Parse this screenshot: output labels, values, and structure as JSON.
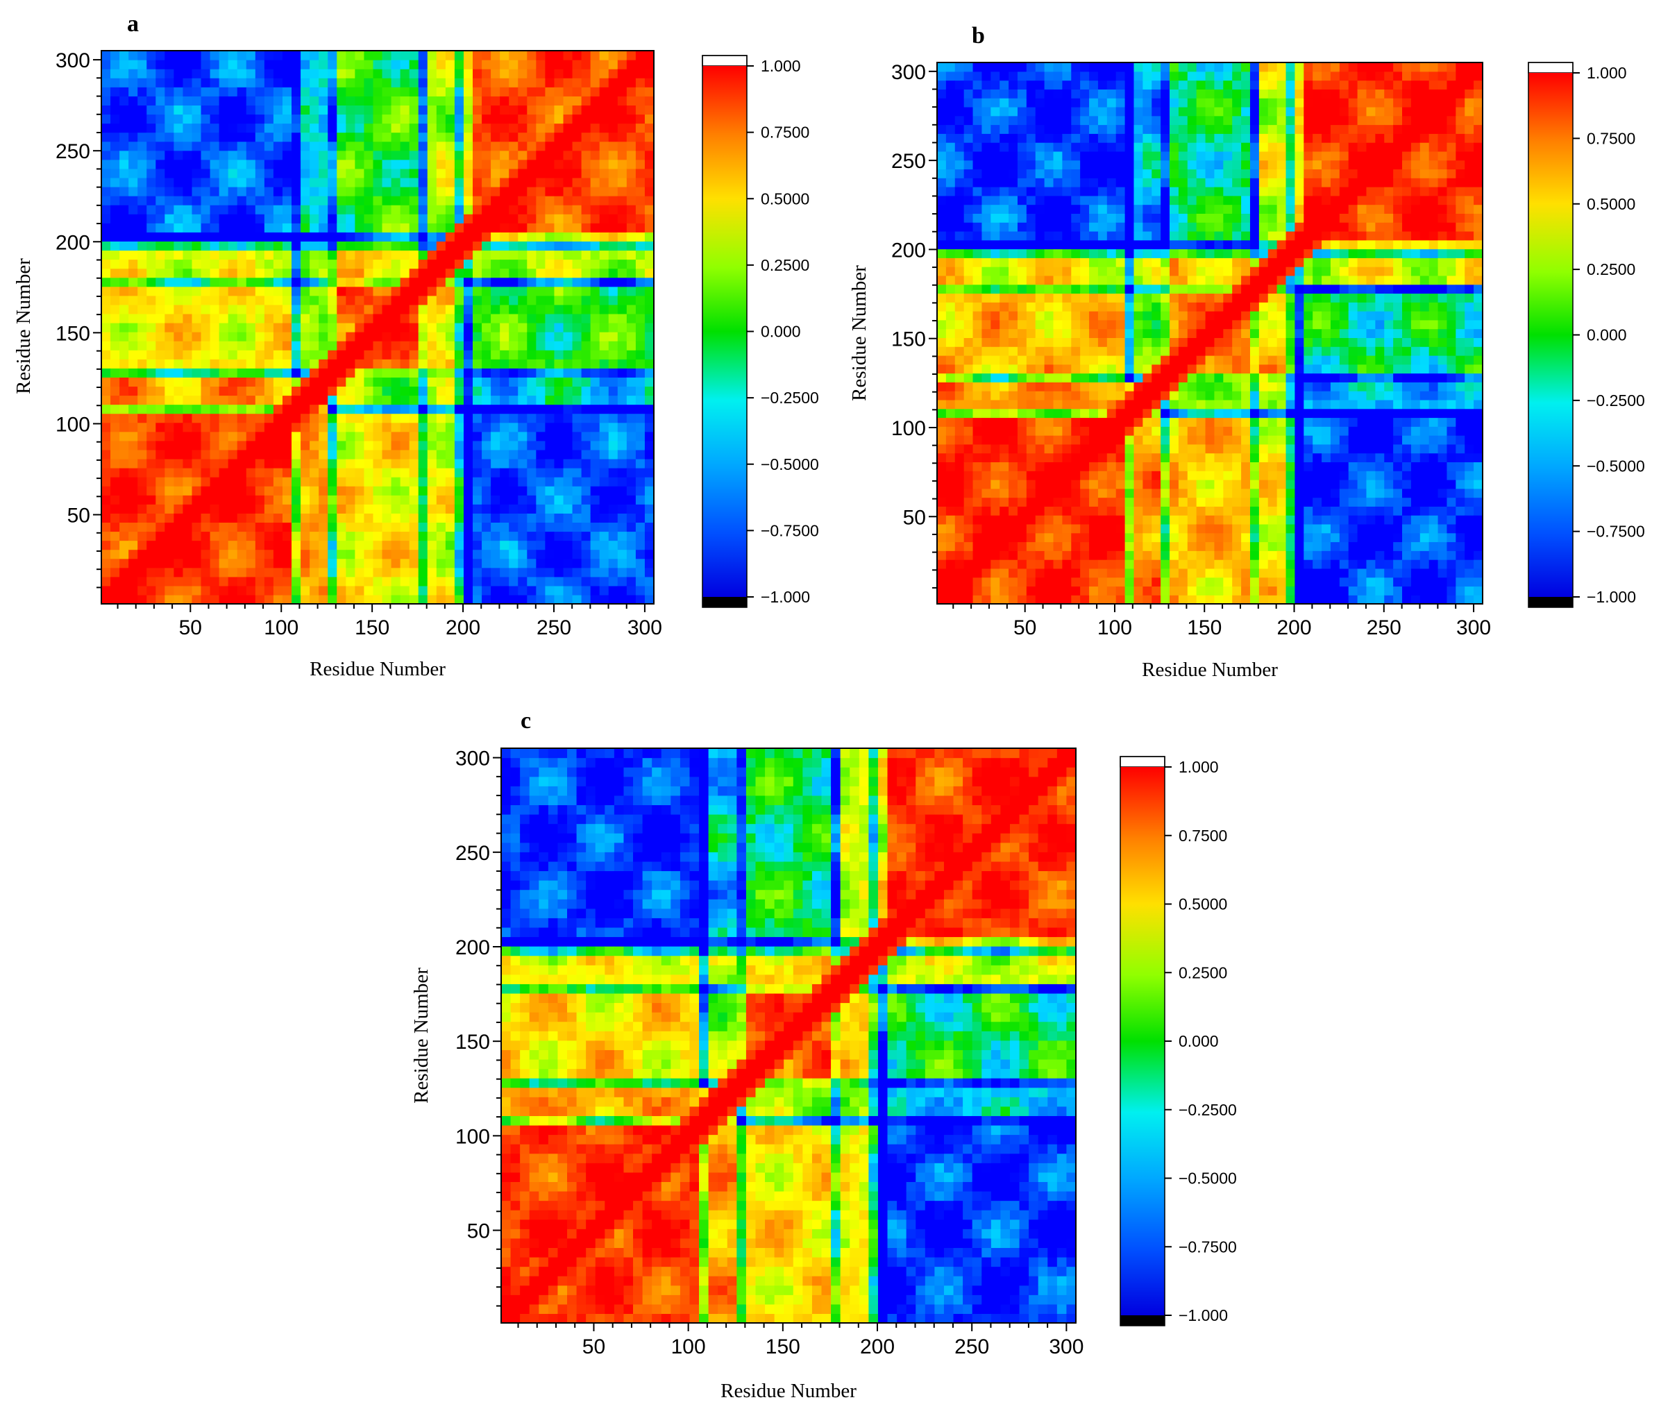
{
  "chart_data": [
    {
      "type": "heatmap",
      "panel_label": "a",
      "title": "",
      "xlabel": "Residue Number",
      "ylabel": "Residue Number",
      "xlim": [
        1,
        305
      ],
      "ylim": [
        1,
        305
      ],
      "x_ticks": [
        50,
        100,
        150,
        200,
        250,
        300
      ],
      "y_ticks": [
        50,
        100,
        150,
        200,
        250,
        300
      ],
      "value_range": [
        -1.0,
        1.0
      ],
      "colorbar_ticks": [
        "1.000",
        "0.7500",
        "0.5000",
        "0.2500",
        "0.000",
        "−0.2500",
        "−0.5000",
        "−0.7500",
        "−1.000"
      ],
      "colormap": [
        "#0000ff",
        "#0080ff",
        "#00e0ff",
        "#00e000",
        "#80ff00",
        "#ffff00",
        "#ffb000",
        "#ff6000",
        "#ff0000"
      ],
      "domain_boundaries": [
        108,
        128,
        178,
        200
      ],
      "blocks": [
        {
          "from": [
            1,
            108
          ],
          "to": [
            1,
            108
          ],
          "value": 0.85
        },
        {
          "from": [
            200,
            305
          ],
          "to": [
            200,
            305
          ],
          "value": 0.8
        },
        {
          "from": [
            1,
            108
          ],
          "to": [
            200,
            305
          ],
          "value": -0.85
        },
        {
          "from": [
            108,
            128
          ],
          "to": [
            108,
            128
          ],
          "value": 0.95
        },
        {
          "from": [
            128,
            178
          ],
          "to": [
            128,
            178
          ],
          "value": 0.75
        },
        {
          "from": [
            128,
            178
          ],
          "to": [
            1,
            108
          ],
          "value": 0.3
        },
        {
          "from": [
            128,
            178
          ],
          "to": [
            200,
            305
          ],
          "value": -0.2
        },
        {
          "from": [
            108,
            128
          ],
          "to": [
            1,
            108
          ],
          "value": 0.55
        },
        {
          "from": [
            108,
            128
          ],
          "to": [
            200,
            305
          ],
          "value": -0.5
        },
        {
          "from": [
            178,
            200
          ],
          "to": [
            1,
            108
          ],
          "value": 0.2
        },
        {
          "from": [
            178,
            200
          ],
          "to": [
            200,
            305
          ],
          "value": 0.1
        },
        {
          "from": [
            178,
            200
          ],
          "to": [
            128,
            178
          ],
          "value": 0.4
        }
      ]
    },
    {
      "type": "heatmap",
      "panel_label": "b",
      "title": "",
      "xlabel": "Residue Number",
      "ylabel": "Residue Number",
      "xlim": [
        1,
        305
      ],
      "ylim": [
        1,
        305
      ],
      "x_ticks": [
        50,
        100,
        150,
        200,
        250,
        300
      ],
      "y_ticks": [
        50,
        100,
        150,
        200,
        250,
        300
      ],
      "value_range": [
        -1.0,
        1.0
      ],
      "colorbar_ticks": [
        "1.000",
        "0.7500",
        "0.5000",
        "0.2500",
        "0.000",
        "−0.2500",
        "−0.5000",
        "−0.7500",
        "−1.000"
      ],
      "colormap": [
        "#0000ff",
        "#0080ff",
        "#00e0ff",
        "#00e000",
        "#80ff00",
        "#ffff00",
        "#ffb000",
        "#ff6000",
        "#ff0000"
      ],
      "domain_boundaries": [
        108,
        128,
        178,
        200
      ],
      "blocks": [
        {
          "from": [
            1,
            108
          ],
          "to": [
            1,
            108
          ],
          "value": 0.9
        },
        {
          "from": [
            200,
            305
          ],
          "to": [
            200,
            305
          ],
          "value": 0.9
        },
        {
          "from": [
            1,
            108
          ],
          "to": [
            200,
            305
          ],
          "value": -0.9
        },
        {
          "from": [
            108,
            128
          ],
          "to": [
            108,
            128
          ],
          "value": 0.95
        },
        {
          "from": [
            128,
            178
          ],
          "to": [
            128,
            178
          ],
          "value": 0.7
        },
        {
          "from": [
            128,
            178
          ],
          "to": [
            1,
            108
          ],
          "value": 0.45
        },
        {
          "from": [
            128,
            178
          ],
          "to": [
            200,
            305
          ],
          "value": -0.35
        },
        {
          "from": [
            108,
            128
          ],
          "to": [
            1,
            108
          ],
          "value": 0.6
        },
        {
          "from": [
            108,
            128
          ],
          "to": [
            200,
            305
          ],
          "value": -0.6
        },
        {
          "from": [
            178,
            200
          ],
          "to": [
            1,
            108
          ],
          "value": 0.3
        },
        {
          "from": [
            178,
            200
          ],
          "to": [
            200,
            305
          ],
          "value": 0.2
        },
        {
          "from": [
            178,
            200
          ],
          "to": [
            128,
            178
          ],
          "value": 0.45
        }
      ]
    },
    {
      "type": "heatmap",
      "panel_label": "c",
      "title": "",
      "xlabel": "Residue Number",
      "ylabel": "Residue Number",
      "xlim": [
        1,
        305
      ],
      "ylim": [
        1,
        305
      ],
      "x_ticks": [
        50,
        100,
        150,
        200,
        250,
        300
      ],
      "y_ticks": [
        50,
        100,
        150,
        200,
        250,
        300
      ],
      "value_range": [
        -1.0,
        1.0
      ],
      "colorbar_ticks": [
        "1.000",
        "0.7500",
        "0.5000",
        "0.2500",
        "0.000",
        "−0.2500",
        "−0.5000",
        "−0.7500",
        "−1.000"
      ],
      "colormap": [
        "#0000ff",
        "#0080ff",
        "#00e0ff",
        "#00e000",
        "#80ff00",
        "#ffff00",
        "#ffb000",
        "#ff6000",
        "#ff0000"
      ],
      "domain_boundaries": [
        108,
        128,
        178,
        200
      ],
      "blocks": [
        {
          "from": [
            1,
            108
          ],
          "to": [
            1,
            108
          ],
          "value": 0.85
        },
        {
          "from": [
            200,
            305
          ],
          "to": [
            200,
            305
          ],
          "value": 0.85
        },
        {
          "from": [
            1,
            108
          ],
          "to": [
            200,
            305
          ],
          "value": -0.9
        },
        {
          "from": [
            108,
            128
          ],
          "to": [
            108,
            128
          ],
          "value": 0.95
        },
        {
          "from": [
            128,
            178
          ],
          "to": [
            128,
            178
          ],
          "value": 0.7
        },
        {
          "from": [
            128,
            178
          ],
          "to": [
            1,
            108
          ],
          "value": 0.35
        },
        {
          "from": [
            128,
            178
          ],
          "to": [
            200,
            305
          ],
          "value": -0.3
        },
        {
          "from": [
            108,
            128
          ],
          "to": [
            1,
            108
          ],
          "value": 0.55
        },
        {
          "from": [
            108,
            128
          ],
          "to": [
            200,
            305
          ],
          "value": -0.55
        },
        {
          "from": [
            178,
            200
          ],
          "to": [
            1,
            108
          ],
          "value": 0.25
        },
        {
          "from": [
            178,
            200
          ],
          "to": [
            200,
            305
          ],
          "value": 0.15
        },
        {
          "from": [
            178,
            200
          ],
          "to": [
            128,
            178
          ],
          "value": 0.4
        }
      ]
    }
  ]
}
